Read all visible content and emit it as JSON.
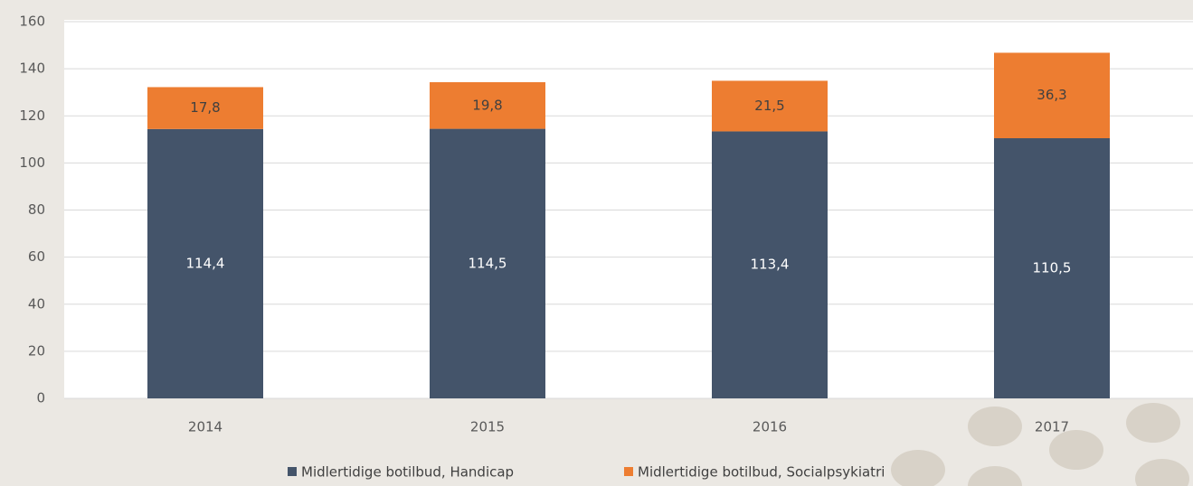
{
  "chart_data": {
    "type": "stacked_bar",
    "categories": [
      "2014",
      "2015",
      "2016",
      "2017"
    ],
    "series": [
      {
        "name": "Midlertidige botilbud, Handicap",
        "color": "#44546a",
        "values": [
          114.4,
          114.5,
          113.4,
          110.5
        ],
        "value_labels": [
          "114,4",
          "114,5",
          "113,4",
          "110,5"
        ]
      },
      {
        "name": "Midlertidige botilbud, Socialpsykiatri",
        "color": "#ed7d31",
        "values": [
          17.8,
          19.8,
          21.5,
          36.3
        ],
        "value_labels": [
          "17,8",
          "19,8",
          "21,5",
          "36,3"
        ]
      }
    ],
    "ylim": [
      0,
      160
    ],
    "yticks": [
      0,
      20,
      40,
      60,
      80,
      100,
      120,
      140,
      160
    ],
    "grid": true,
    "legend": "bottom"
  }
}
